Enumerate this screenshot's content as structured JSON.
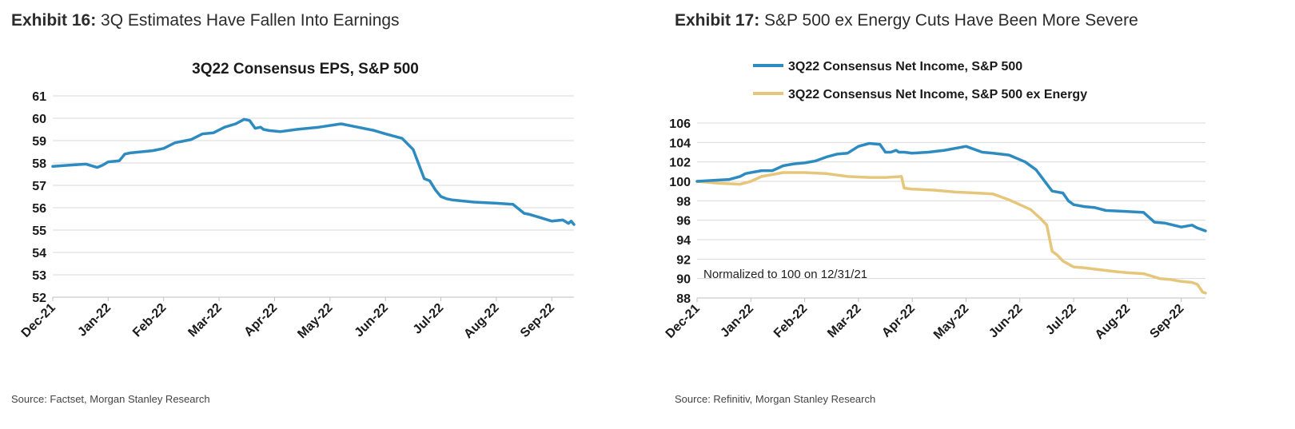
{
  "exhibits": [
    {
      "number": "Exhibit 16:",
      "title": "3Q Estimates Have Fallen Into Earnings",
      "source": "Source: Factset, Morgan Stanley Research"
    },
    {
      "number": "Exhibit 17:",
      "title": "S&P 500 ex Energy Cuts Have Been More Severe",
      "source": "Source: Refinitiv, Morgan Stanley Research"
    }
  ],
  "chart_data": [
    {
      "type": "line",
      "title": "3Q22 Consensus EPS, S&P 500",
      "xlabel": "",
      "ylabel": "",
      "x_ticks": [
        "Dec-21",
        "Jan-22",
        "Feb-22",
        "Mar-22",
        "Apr-22",
        "May-22",
        "Jun-22",
        "Jul-22",
        "Aug-22",
        "Sep-22"
      ],
      "x_tick_positions": [
        0,
        1,
        2,
        3,
        4,
        5,
        6,
        7,
        8,
        9
      ],
      "xlim": [
        0,
        9.4
      ],
      "ylim": [
        52,
        61
      ],
      "y_ticks": [
        52,
        53,
        54,
        55,
        56,
        57,
        58,
        59,
        60,
        61
      ],
      "grid": true,
      "legend": "none",
      "colors": [
        "#2E8BC0"
      ],
      "series": [
        {
          "color": "#2E8BC0",
          "x": [
            0.0,
            0.3,
            0.6,
            0.8,
            0.9,
            1.0,
            1.2,
            1.3,
            1.4,
            1.6,
            1.8,
            2.0,
            2.2,
            2.3,
            2.5,
            2.7,
            2.9,
            3.1,
            3.3,
            3.45,
            3.55,
            3.65,
            3.75,
            3.8,
            3.9,
            4.1,
            4.4,
            4.8,
            5.2,
            5.5,
            5.8,
            6.0,
            6.3,
            6.5,
            6.7,
            6.8,
            6.9,
            7.0,
            7.1,
            7.2,
            7.4,
            7.6,
            8.0,
            8.3,
            8.5,
            8.6,
            8.8,
            9.0,
            9.2,
            9.3,
            9.35,
            9.4
          ],
          "values": [
            57.85,
            57.9,
            57.95,
            57.8,
            57.9,
            58.05,
            58.1,
            58.4,
            58.45,
            58.5,
            58.55,
            58.65,
            58.9,
            58.95,
            59.05,
            59.3,
            59.35,
            59.6,
            59.75,
            59.95,
            59.9,
            59.55,
            59.6,
            59.5,
            59.45,
            59.4,
            59.5,
            59.6,
            59.75,
            59.6,
            59.45,
            59.3,
            59.1,
            58.6,
            57.3,
            57.2,
            56.8,
            56.5,
            56.4,
            56.35,
            56.3,
            56.25,
            56.2,
            56.15,
            55.75,
            55.7,
            55.55,
            55.4,
            55.45,
            55.3,
            55.4,
            55.25
          ]
        }
      ]
    },
    {
      "type": "line",
      "title": "",
      "xlabel": "",
      "ylabel": "",
      "x_ticks": [
        "Dec-21",
        "Jan-22",
        "Feb-22",
        "Mar-22",
        "Apr-22",
        "May-22",
        "Jun-22",
        "Jul-22",
        "Aug-22",
        "Sep-22"
      ],
      "x_tick_positions": [
        0,
        1,
        2,
        3,
        4,
        5,
        6,
        7,
        8,
        9
      ],
      "xlim": [
        0,
        9.45
      ],
      "ylim": [
        88,
        106
      ],
      "y_ticks": [
        88,
        90,
        92,
        94,
        96,
        98,
        100,
        102,
        104,
        106
      ],
      "grid": true,
      "legend": "top-left",
      "annotation": "Normalized to 100 on 12/31/21",
      "colors": [
        "#2E8BC0",
        "#E6C67A"
      ],
      "series": [
        {
          "name": "3Q22 Consensus Net Income, S&P 500",
          "color": "#2E8BC0",
          "x": [
            0.0,
            0.3,
            0.6,
            0.8,
            0.9,
            1.0,
            1.2,
            1.4,
            1.6,
            1.8,
            2.0,
            2.2,
            2.4,
            2.6,
            2.8,
            3.0,
            3.2,
            3.4,
            3.5,
            3.6,
            3.7,
            3.75,
            3.85,
            4.0,
            4.3,
            4.6,
            5.0,
            5.3,
            5.5,
            5.8,
            6.1,
            6.3,
            6.6,
            6.8,
            6.9,
            7.0,
            7.2,
            7.4,
            7.6,
            8.0,
            8.3,
            8.5,
            8.7,
            9.0,
            9.2,
            9.3,
            9.4,
            9.45
          ],
          "values": [
            100.0,
            100.1,
            100.2,
            100.5,
            100.8,
            100.9,
            101.1,
            101.1,
            101.6,
            101.8,
            101.9,
            102.1,
            102.5,
            102.8,
            102.9,
            103.6,
            103.9,
            103.8,
            103.0,
            103.0,
            103.2,
            103.0,
            103.0,
            102.9,
            103.0,
            103.2,
            103.6,
            103.0,
            102.9,
            102.7,
            102.0,
            101.2,
            99.0,
            98.8,
            98.0,
            97.6,
            97.4,
            97.3,
            97.0,
            96.9,
            96.8,
            95.8,
            95.7,
            95.3,
            95.5,
            95.2,
            95.0,
            94.9
          ]
        },
        {
          "name": "3Q22 Consensus Net Income, S&P 500 ex Energy",
          "color": "#E6C67A",
          "x": [
            0.0,
            0.4,
            0.8,
            1.0,
            1.2,
            1.4,
            1.6,
            2.0,
            2.4,
            2.8,
            3.2,
            3.5,
            3.8,
            3.85,
            4.0,
            4.4,
            4.8,
            5.2,
            5.5,
            5.8,
            6.0,
            6.2,
            6.4,
            6.5,
            6.6,
            6.7,
            6.8,
            6.9,
            7.0,
            7.2,
            7.5,
            7.8,
            8.0,
            8.3,
            8.6,
            8.8,
            9.0,
            9.2,
            9.3,
            9.4,
            9.45
          ],
          "values": [
            100.0,
            99.8,
            99.7,
            100.0,
            100.5,
            100.7,
            100.9,
            100.9,
            100.8,
            100.5,
            100.4,
            100.4,
            100.5,
            99.3,
            99.2,
            99.1,
            98.9,
            98.8,
            98.7,
            98.1,
            97.6,
            97.1,
            96.1,
            95.5,
            92.8,
            92.4,
            91.8,
            91.5,
            91.2,
            91.1,
            90.9,
            90.7,
            90.6,
            90.5,
            90.0,
            89.9,
            89.7,
            89.6,
            89.4,
            88.6,
            88.5
          ]
        }
      ]
    }
  ]
}
